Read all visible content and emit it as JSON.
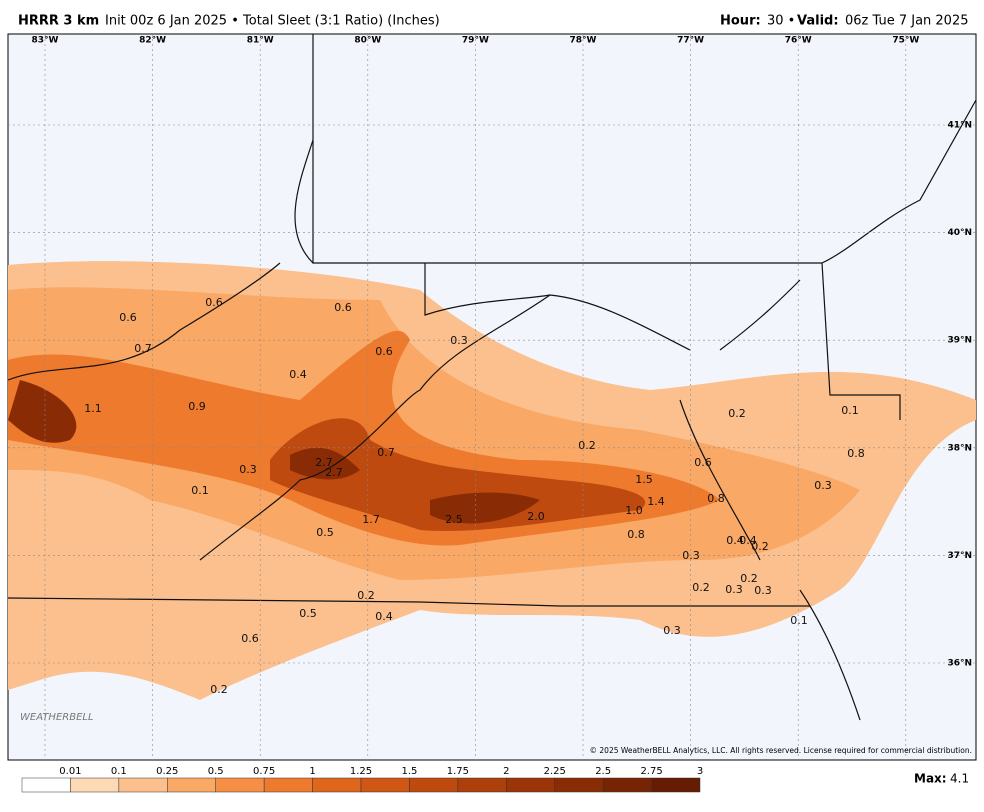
{
  "header": {
    "model": "HRRR 3 km",
    "product": "Init 00z 6 Jan 2025 • Total Sleet (3:1 Ratio) (Inches)",
    "hour_label": "Hour:",
    "hour": "30 •",
    "valid_label": "Valid:",
    "valid": "06z Tue 7 Jan 2025"
  },
  "map": {
    "longitudes": [
      "83°W",
      "82°W",
      "81°W",
      "80°W",
      "79°W",
      "78°W",
      "77°W",
      "76°W",
      "75°W"
    ],
    "latitudes": [
      "41°N",
      "40°N",
      "39°N",
      "38°N",
      "37°N",
      "36°N"
    ],
    "labels": [
      "0.6",
      "0.6",
      "0.7",
      "0.6",
      "0.6",
      "0.3",
      "0.4",
      "0.9",
      "1.1",
      "0.3",
      "2.7",
      "2.7",
      "0.7",
      "0.1",
      "0.5",
      "1.7",
      "2.5",
      "2.0",
      "0.2",
      "1.5",
      "1.4",
      "1.0",
      "0.8",
      "0.8",
      "0.6",
      "0.3",
      "0.4",
      "0.4",
      "0.2",
      "0.2",
      "0.3",
      "0.3",
      "0.2",
      "0.2",
      "0.4",
      "0.5",
      "0.6",
      "0.2",
      "0.3",
      "0.1",
      "0.1",
      "0.2",
      "0.8",
      "0.3"
    ],
    "logo": "WEATHERBELL",
    "copyright": "© 2025 WeatherBELL Analytics, LLC. All rights reserved. License required for commercial distribution."
  },
  "colorbar": {
    "ticks": [
      "0.01",
      "0.1",
      "0.25",
      "0.5",
      "0.75",
      "1",
      "1.25",
      "1.5",
      "1.75",
      "2",
      "2.25",
      "2.5",
      "2.75",
      "3"
    ],
    "colors": [
      "#ffffff",
      "#fdd9b5",
      "#fcc08e",
      "#f9a866",
      "#f58f45",
      "#ee7a2e",
      "#e0661e",
      "#d05614",
      "#bf4a0f",
      "#ad3f0b",
      "#9b3508",
      "#892c06",
      "#772404",
      "#661c02"
    ],
    "max_label": "Max:",
    "max": "4.1"
  }
}
